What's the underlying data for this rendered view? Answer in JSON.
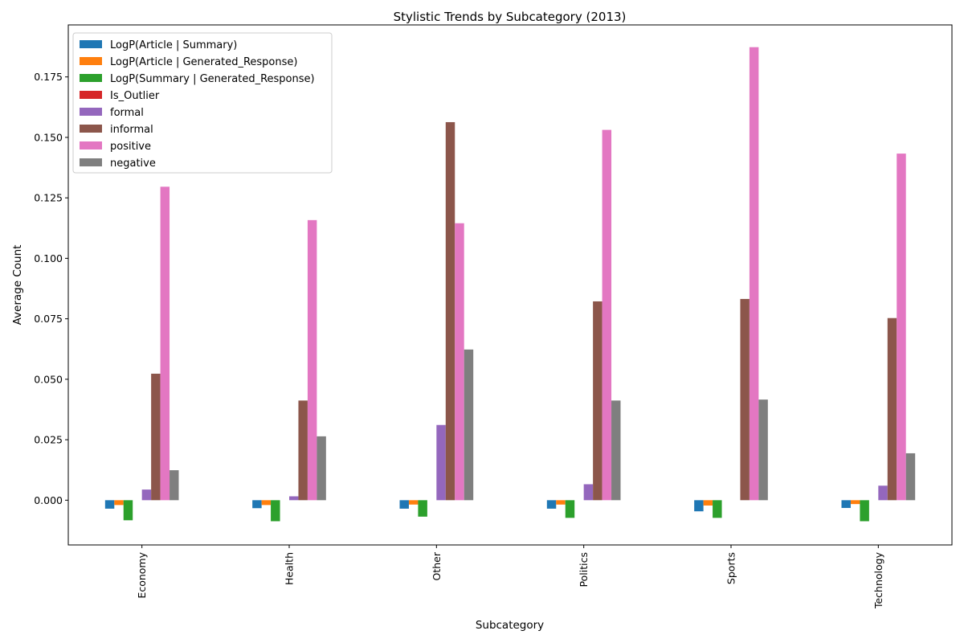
{
  "chart_data": {
    "type": "bar",
    "title": "Stylistic Trends by Subcategory (2013)",
    "xlabel": "Subcategory",
    "ylabel": "Average Count",
    "categories": [
      "Economy",
      "Health",
      "Other",
      "Politics",
      "Sports",
      "Technology"
    ],
    "ylim": [
      -0.0185,
      0.1965
    ],
    "yticks": [
      0.0,
      0.025,
      0.05,
      0.075,
      0.1,
      0.125,
      0.15,
      0.175
    ],
    "ytick_labels": [
      "0.000",
      "0.025",
      "0.050",
      "0.075",
      "0.100",
      "0.125",
      "0.150",
      "0.175"
    ],
    "grid": false,
    "legend_position": "top-left",
    "series": [
      {
        "name": "LogP(Article | Summary)",
        "color": "#1f77b4",
        "values": [
          -0.0035,
          -0.0033,
          -0.0035,
          -0.0035,
          -0.0046,
          -0.0032
        ]
      },
      {
        "name": "LogP(Article | Generated_Response)",
        "color": "#ff7f0e",
        "values": [
          -0.002,
          -0.002,
          -0.0018,
          -0.0018,
          -0.0022,
          -0.0016
        ]
      },
      {
        "name": "LogP(Summary | Generated_Response)",
        "color": "#2ca02c",
        "values": [
          -0.0083,
          -0.0087,
          -0.0068,
          -0.0073,
          -0.0073,
          -0.0087
        ]
      },
      {
        "name": "Is_Outlier",
        "color": "#d62728",
        "values": [
          0.0,
          0.0,
          0.0,
          0.0,
          0.0,
          0.0
        ]
      },
      {
        "name": "formal",
        "color": "#9467bd",
        "values": [
          0.0044,
          0.0016,
          0.0311,
          0.0066,
          0.0,
          0.006
        ]
      },
      {
        "name": "informal",
        "color": "#8c564b",
        "values": [
          0.0523,
          0.0412,
          0.1563,
          0.0822,
          0.0832,
          0.0753
        ]
      },
      {
        "name": "positive",
        "color": "#e377c2",
        "values": [
          0.1296,
          0.1158,
          0.1145,
          0.1531,
          0.1873,
          0.1433
        ]
      },
      {
        "name": "negative",
        "color": "#7f7f7f",
        "values": [
          0.0124,
          0.0264,
          0.0623,
          0.0412,
          0.0416,
          0.0194
        ]
      }
    ]
  }
}
